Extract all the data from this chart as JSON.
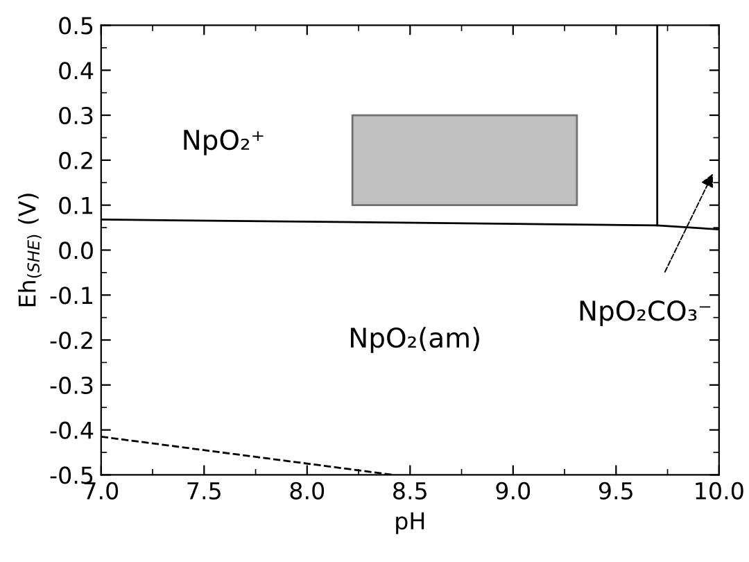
{
  "chart_data": {
    "type": "line",
    "xlabel": "pH",
    "ylabel": "Eh$_{(SHE)}$ (V)",
    "xlim": [
      7.0,
      10.0
    ],
    "ylim": [
      -0.5,
      0.5
    ],
    "xticks": [
      {
        "value": 7.0,
        "label": "7.0"
      },
      {
        "value": 7.5,
        "label": "7.5"
      },
      {
        "value": 8.0,
        "label": "8.0"
      },
      {
        "value": 8.5,
        "label": "8.5"
      },
      {
        "value": 9.0,
        "label": "9.0"
      },
      {
        "value": 9.5,
        "label": "9.5"
      },
      {
        "value": 10.0,
        "label": "10.0"
      }
    ],
    "yticks": [
      {
        "value": -0.5,
        "label": "-0.5"
      },
      {
        "value": -0.4,
        "label": "-0.4"
      },
      {
        "value": -0.3,
        "label": "-0.3"
      },
      {
        "value": -0.2,
        "label": "-0.2"
      },
      {
        "value": -0.1,
        "label": "-0.1"
      },
      {
        "value": 0.0,
        "label": "0.0"
      },
      {
        "value": 0.1,
        "label": "0.1"
      },
      {
        "value": 0.2,
        "label": "0.2"
      },
      {
        "value": 0.3,
        "label": "0.3"
      },
      {
        "value": 0.4,
        "label": "0.4"
      },
      {
        "value": 0.5,
        "label": "0.5"
      }
    ],
    "grid": false,
    "legend": false,
    "series": [
      {
        "color": "#000000",
        "line_style": "solid",
        "x": [
          7.0,
          9.7,
          10.0
        ],
        "values": [
          0.068,
          0.055,
          0.046
        ]
      },
      {
        "color": "#000000",
        "line_style": "solid",
        "x": [
          9.7,
          9.7
        ],
        "values": [
          0.055,
          0.5
        ]
      },
      {
        "color": "#000000",
        "line_style": "dashed",
        "x": [
          7.0,
          8.42
        ],
        "values": [
          -0.415,
          -0.5
        ]
      },
      {
        "type": "area",
        "color": "#c0c0c0",
        "x": [
          8.22,
          9.31,
          9.31,
          8.22,
          8.22
        ],
        "values": [
          0.1,
          0.1,
          0.3,
          0.3,
          0.1
        ]
      }
    ],
    "annotations": [
      "NpO₂⁺",
      "NpO₂(am)",
      "NpO₂CO₃⁻"
    ]
  }
}
